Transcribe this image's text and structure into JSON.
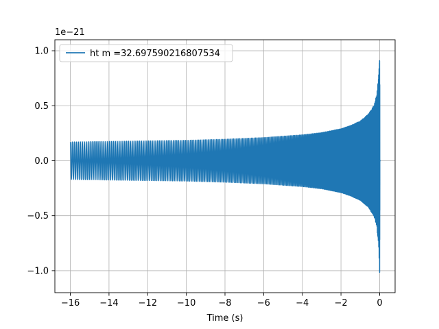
{
  "chart_data": {
    "type": "line",
    "title": "",
    "xlabel": "Time (s)",
    "ylabel": "",
    "y_offset_label": "1e−21",
    "xlim": [
      -16.8,
      0.8
    ],
    "ylim": [
      -1.2,
      1.1
    ],
    "grid": true,
    "legend_position": "upper-left",
    "x_ticks": [
      -16,
      -14,
      -12,
      -10,
      -8,
      -6,
      -4,
      -2,
      0
    ],
    "x_tick_labels": [
      "−16",
      "−14",
      "−12",
      "−10",
      "−8",
      "−6",
      "−4",
      "−2",
      "0"
    ],
    "y_ticks": [
      -1.0,
      -0.5,
      0.0,
      0.5,
      1.0
    ],
    "y_tick_labels": [
      "−1.0",
      "−0.5",
      "0.0",
      "0.5",
      "1.0"
    ],
    "series": [
      {
        "name": "ht m =32.697590216807534",
        "color": "#1f77b4",
        "x_start": -16.0,
        "x_end": 0.05,
        "envelope": {
          "t": [
            -16,
            -14,
            -12,
            -10,
            -8,
            -6,
            -4,
            -3,
            -2,
            -1.5,
            -1,
            -0.6,
            -0.3,
            -0.15,
            -0.06,
            -0.02,
            0.0,
            0.02,
            0.05
          ],
          "upper": [
            0.17,
            0.175,
            0.18,
            0.185,
            0.195,
            0.21,
            0.235,
            0.255,
            0.29,
            0.32,
            0.36,
            0.42,
            0.5,
            0.6,
            0.75,
            0.9,
            0.98,
            0.2,
            0.0
          ],
          "lower": [
            -0.17,
            -0.175,
            -0.18,
            -0.185,
            -0.195,
            -0.21,
            -0.235,
            -0.255,
            -0.29,
            -0.32,
            -0.36,
            -0.42,
            -0.5,
            -0.6,
            -0.75,
            -0.92,
            -1.09,
            -0.2,
            0.0
          ]
        }
      }
    ]
  }
}
